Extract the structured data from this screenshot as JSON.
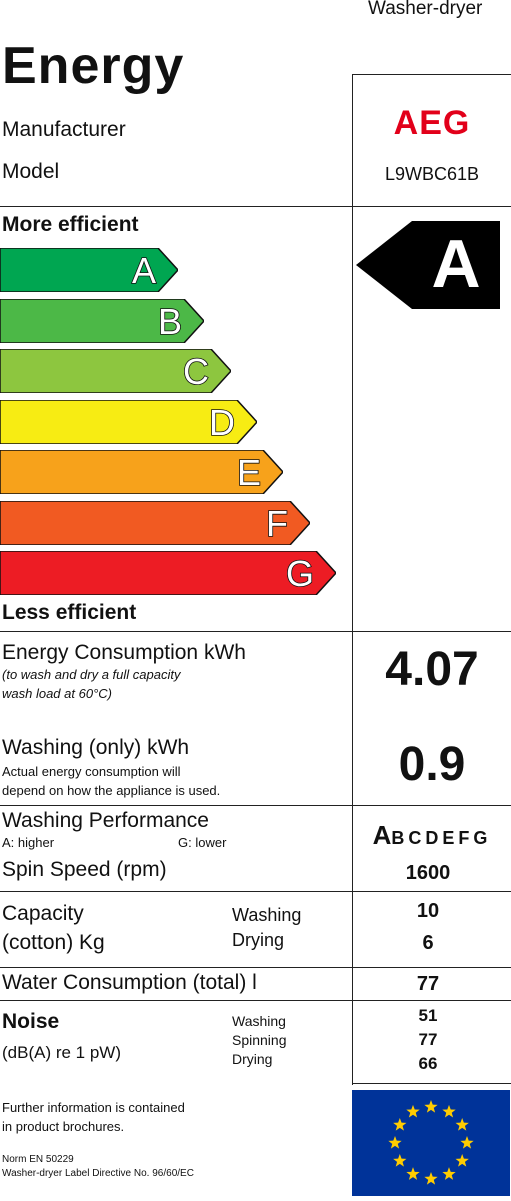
{
  "header": {
    "category": "Washer-dryer",
    "title": "Energy",
    "manufacturer_label": "Manufacturer",
    "model_label": "Model",
    "brand": "AEG",
    "model": "L9WBC61B"
  },
  "scale": {
    "top_label": "More efficient",
    "bottom_label": "Less efficient",
    "classes": [
      {
        "letter": "A",
        "color": "#00a651"
      },
      {
        "letter": "B",
        "color": "#4cb847"
      },
      {
        "letter": "C",
        "color": "#8dc63f"
      },
      {
        "letter": "D",
        "color": "#f7ec13"
      },
      {
        "letter": "E",
        "color": "#f7a21b"
      },
      {
        "letter": "F",
        "color": "#f15a22"
      },
      {
        "letter": "G",
        "color": "#ed1c24"
      }
    ],
    "rating": "A"
  },
  "energy": {
    "label": "Energy Consumption kWh",
    "note1": "(to wash and dry a full capacity",
    "note2": "wash load at 60°C)",
    "value": "4.07"
  },
  "washing_only": {
    "label": "Washing (only) kWh",
    "note1": "Actual energy consumption will",
    "note2": "depend on how the appliance is used.",
    "value": "0.9"
  },
  "performance": {
    "label": "Washing Performance",
    "higher": "A:  higher",
    "lower": "G:  lower",
    "rating_first": "A",
    "rating_rest": "BCDEFG",
    "spin_label": "Spin Speed (rpm)",
    "spin_value": "1600"
  },
  "capacity": {
    "label1": "Capacity",
    "label2": "(cotton) Kg",
    "washing_label": "Washing",
    "drying_label": "Drying",
    "washing_value": "10",
    "drying_value": "6"
  },
  "water": {
    "label": "Water Consumption (total) l",
    "value": "77"
  },
  "noise": {
    "label1": "Noise",
    "label2": "(dB(A) re 1 pW)",
    "washing_label": "Washing",
    "spinning_label": "Spinning",
    "drying_label": "Drying",
    "washing_value": "51",
    "spinning_value": "77",
    "drying_value": "66"
  },
  "footer": {
    "info1": "Further information is contained",
    "info2": "in product brochures.",
    "norm": "Norm EN 50229",
    "directive": "Washer-dryer Label Directive No. 96/60/EC",
    "flag_bg": "#003399",
    "star_color": "#ffcc00"
  }
}
